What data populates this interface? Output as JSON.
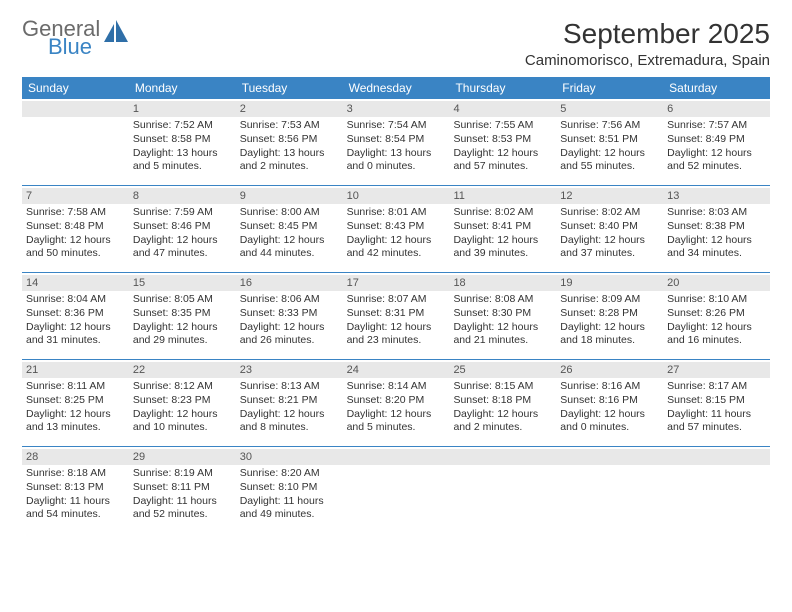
{
  "logo": {
    "word1": "General",
    "word2": "Blue"
  },
  "title": "September 2025",
  "location": "Caminomorisco, Extremadura, Spain",
  "colors": {
    "accent": "#3a84c4",
    "headerBg": "#e8e8e8",
    "text": "#333333"
  },
  "dayNames": [
    "Sunday",
    "Monday",
    "Tuesday",
    "Wednesday",
    "Thursday",
    "Friday",
    "Saturday"
  ],
  "weeks": [
    [
      {
        "day": "",
        "sunrise": "",
        "sunset": "",
        "daylight1": "",
        "daylight2": ""
      },
      {
        "day": "1",
        "sunrise": "Sunrise: 7:52 AM",
        "sunset": "Sunset: 8:58 PM",
        "daylight1": "Daylight: 13 hours",
        "daylight2": "and 5 minutes."
      },
      {
        "day": "2",
        "sunrise": "Sunrise: 7:53 AM",
        "sunset": "Sunset: 8:56 PM",
        "daylight1": "Daylight: 13 hours",
        "daylight2": "and 2 minutes."
      },
      {
        "day": "3",
        "sunrise": "Sunrise: 7:54 AM",
        "sunset": "Sunset: 8:54 PM",
        "daylight1": "Daylight: 13 hours",
        "daylight2": "and 0 minutes."
      },
      {
        "day": "4",
        "sunrise": "Sunrise: 7:55 AM",
        "sunset": "Sunset: 8:53 PM",
        "daylight1": "Daylight: 12 hours",
        "daylight2": "and 57 minutes."
      },
      {
        "day": "5",
        "sunrise": "Sunrise: 7:56 AM",
        "sunset": "Sunset: 8:51 PM",
        "daylight1": "Daylight: 12 hours",
        "daylight2": "and 55 minutes."
      },
      {
        "day": "6",
        "sunrise": "Sunrise: 7:57 AM",
        "sunset": "Sunset: 8:49 PM",
        "daylight1": "Daylight: 12 hours",
        "daylight2": "and 52 minutes."
      }
    ],
    [
      {
        "day": "7",
        "sunrise": "Sunrise: 7:58 AM",
        "sunset": "Sunset: 8:48 PM",
        "daylight1": "Daylight: 12 hours",
        "daylight2": "and 50 minutes."
      },
      {
        "day": "8",
        "sunrise": "Sunrise: 7:59 AM",
        "sunset": "Sunset: 8:46 PM",
        "daylight1": "Daylight: 12 hours",
        "daylight2": "and 47 minutes."
      },
      {
        "day": "9",
        "sunrise": "Sunrise: 8:00 AM",
        "sunset": "Sunset: 8:45 PM",
        "daylight1": "Daylight: 12 hours",
        "daylight2": "and 44 minutes."
      },
      {
        "day": "10",
        "sunrise": "Sunrise: 8:01 AM",
        "sunset": "Sunset: 8:43 PM",
        "daylight1": "Daylight: 12 hours",
        "daylight2": "and 42 minutes."
      },
      {
        "day": "11",
        "sunrise": "Sunrise: 8:02 AM",
        "sunset": "Sunset: 8:41 PM",
        "daylight1": "Daylight: 12 hours",
        "daylight2": "and 39 minutes."
      },
      {
        "day": "12",
        "sunrise": "Sunrise: 8:02 AM",
        "sunset": "Sunset: 8:40 PM",
        "daylight1": "Daylight: 12 hours",
        "daylight2": "and 37 minutes."
      },
      {
        "day": "13",
        "sunrise": "Sunrise: 8:03 AM",
        "sunset": "Sunset: 8:38 PM",
        "daylight1": "Daylight: 12 hours",
        "daylight2": "and 34 minutes."
      }
    ],
    [
      {
        "day": "14",
        "sunrise": "Sunrise: 8:04 AM",
        "sunset": "Sunset: 8:36 PM",
        "daylight1": "Daylight: 12 hours",
        "daylight2": "and 31 minutes."
      },
      {
        "day": "15",
        "sunrise": "Sunrise: 8:05 AM",
        "sunset": "Sunset: 8:35 PM",
        "daylight1": "Daylight: 12 hours",
        "daylight2": "and 29 minutes."
      },
      {
        "day": "16",
        "sunrise": "Sunrise: 8:06 AM",
        "sunset": "Sunset: 8:33 PM",
        "daylight1": "Daylight: 12 hours",
        "daylight2": "and 26 minutes."
      },
      {
        "day": "17",
        "sunrise": "Sunrise: 8:07 AM",
        "sunset": "Sunset: 8:31 PM",
        "daylight1": "Daylight: 12 hours",
        "daylight2": "and 23 minutes."
      },
      {
        "day": "18",
        "sunrise": "Sunrise: 8:08 AM",
        "sunset": "Sunset: 8:30 PM",
        "daylight1": "Daylight: 12 hours",
        "daylight2": "and 21 minutes."
      },
      {
        "day": "19",
        "sunrise": "Sunrise: 8:09 AM",
        "sunset": "Sunset: 8:28 PM",
        "daylight1": "Daylight: 12 hours",
        "daylight2": "and 18 minutes."
      },
      {
        "day": "20",
        "sunrise": "Sunrise: 8:10 AM",
        "sunset": "Sunset: 8:26 PM",
        "daylight1": "Daylight: 12 hours",
        "daylight2": "and 16 minutes."
      }
    ],
    [
      {
        "day": "21",
        "sunrise": "Sunrise: 8:11 AM",
        "sunset": "Sunset: 8:25 PM",
        "daylight1": "Daylight: 12 hours",
        "daylight2": "and 13 minutes."
      },
      {
        "day": "22",
        "sunrise": "Sunrise: 8:12 AM",
        "sunset": "Sunset: 8:23 PM",
        "daylight1": "Daylight: 12 hours",
        "daylight2": "and 10 minutes."
      },
      {
        "day": "23",
        "sunrise": "Sunrise: 8:13 AM",
        "sunset": "Sunset: 8:21 PM",
        "daylight1": "Daylight: 12 hours",
        "daylight2": "and 8 minutes."
      },
      {
        "day": "24",
        "sunrise": "Sunrise: 8:14 AM",
        "sunset": "Sunset: 8:20 PM",
        "daylight1": "Daylight: 12 hours",
        "daylight2": "and 5 minutes."
      },
      {
        "day": "25",
        "sunrise": "Sunrise: 8:15 AM",
        "sunset": "Sunset: 8:18 PM",
        "daylight1": "Daylight: 12 hours",
        "daylight2": "and 2 minutes."
      },
      {
        "day": "26",
        "sunrise": "Sunrise: 8:16 AM",
        "sunset": "Sunset: 8:16 PM",
        "daylight1": "Daylight: 12 hours",
        "daylight2": "and 0 minutes."
      },
      {
        "day": "27",
        "sunrise": "Sunrise: 8:17 AM",
        "sunset": "Sunset: 8:15 PM",
        "daylight1": "Daylight: 11 hours",
        "daylight2": "and 57 minutes."
      }
    ],
    [
      {
        "day": "28",
        "sunrise": "Sunrise: 8:18 AM",
        "sunset": "Sunset: 8:13 PM",
        "daylight1": "Daylight: 11 hours",
        "daylight2": "and 54 minutes."
      },
      {
        "day": "29",
        "sunrise": "Sunrise: 8:19 AM",
        "sunset": "Sunset: 8:11 PM",
        "daylight1": "Daylight: 11 hours",
        "daylight2": "and 52 minutes."
      },
      {
        "day": "30",
        "sunrise": "Sunrise: 8:20 AM",
        "sunset": "Sunset: 8:10 PM",
        "daylight1": "Daylight: 11 hours",
        "daylight2": "and 49 minutes."
      },
      {
        "day": "",
        "sunrise": "",
        "sunset": "",
        "daylight1": "",
        "daylight2": ""
      },
      {
        "day": "",
        "sunrise": "",
        "sunset": "",
        "daylight1": "",
        "daylight2": ""
      },
      {
        "day": "",
        "sunrise": "",
        "sunset": "",
        "daylight1": "",
        "daylight2": ""
      },
      {
        "day": "",
        "sunrise": "",
        "sunset": "",
        "daylight1": "",
        "daylight2": ""
      }
    ]
  ]
}
